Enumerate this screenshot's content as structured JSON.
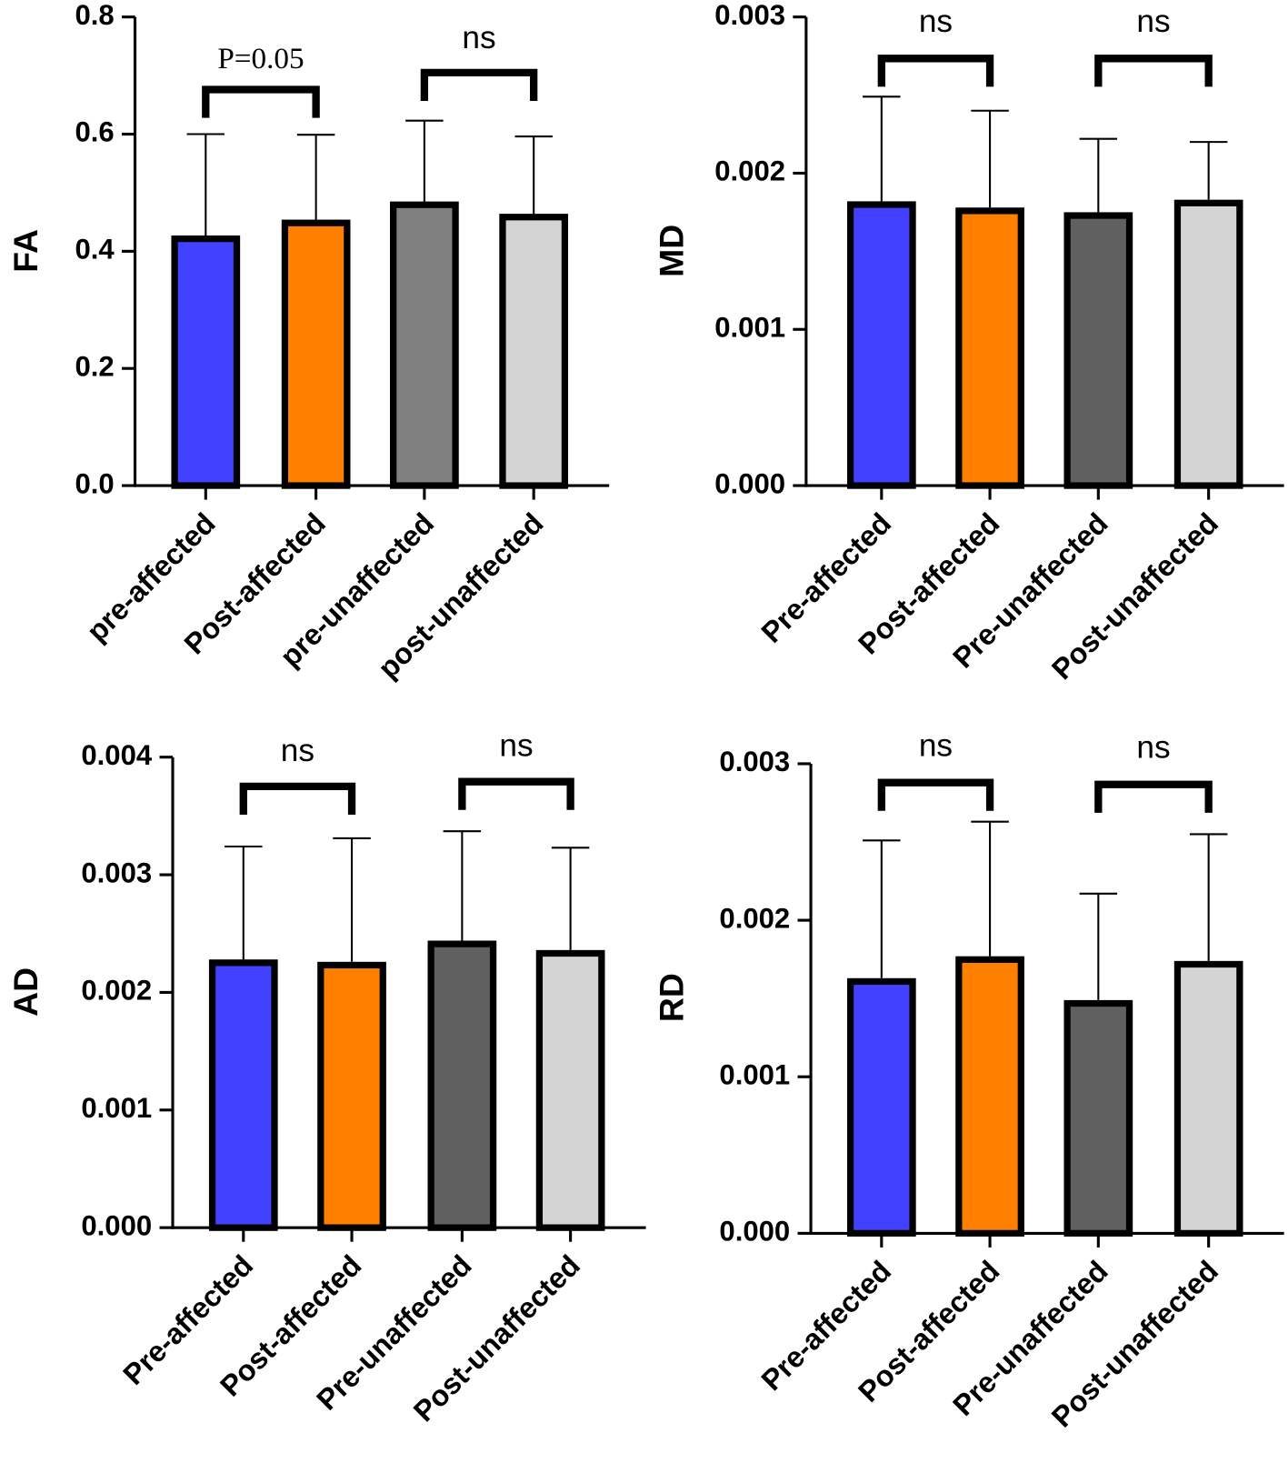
{
  "colors": {
    "blue": "#4141ff",
    "orange": "#ff8000",
    "gray": "#808080",
    "darkgray": "#606060",
    "lightgray": "#d4d4d4",
    "outline": "#000000"
  },
  "chart_data": [
    {
      "type": "bar",
      "ylabel": "FA",
      "ylim": [
        0,
        0.8
      ],
      "ticks": [
        "0.0",
        "0.2",
        "0.4",
        "0.6",
        "0.8"
      ],
      "tick_values": [
        0,
        0.2,
        0.4,
        0.6,
        0.8
      ],
      "categories": [
        "pre-affected",
        "Post-affected",
        "pre-unaffected",
        "post-unaffected"
      ],
      "values": [
        0.427,
        0.454,
        0.485,
        0.464
      ],
      "error_upper": [
        0.6,
        0.599,
        0.623,
        0.596
      ],
      "bar_colors": [
        "#4141ff",
        "#ff8000",
        "#808080",
        "#d4d4d4"
      ],
      "comparisons": [
        {
          "pair": [
            0,
            1
          ],
          "label": "P=0.05"
        },
        {
          "pair": [
            2,
            3
          ],
          "label": "ns"
        }
      ]
    },
    {
      "type": "bar",
      "ylabel": "MD",
      "ylim": [
        0,
        0.003
      ],
      "ticks": [
        "0.000",
        "0.001",
        "0.002",
        "0.003"
      ],
      "tick_values": [
        0,
        0.001,
        0.002,
        0.003
      ],
      "categories": [
        "Pre-affected",
        "Post-affected",
        "Pre-unaffected",
        "Post-unaffected"
      ],
      "values": [
        0.00182,
        0.00178,
        0.00175,
        0.00183
      ],
      "error_upper": [
        0.00249,
        0.0024,
        0.00222,
        0.0022
      ],
      "bar_colors": [
        "#4141ff",
        "#ff8000",
        "#606060",
        "#d4d4d4"
      ],
      "comparisons": [
        {
          "pair": [
            0,
            1
          ],
          "label": "ns"
        },
        {
          "pair": [
            2,
            3
          ],
          "label": "ns"
        }
      ]
    },
    {
      "type": "bar",
      "ylabel": "AD",
      "ylim": [
        0,
        0.004
      ],
      "ticks": [
        "0.000",
        "0.001",
        "0.002",
        "0.003",
        "0.004"
      ],
      "tick_values": [
        0,
        0.001,
        0.002,
        0.003,
        0.004
      ],
      "categories": [
        "Pre-affected",
        "Post-affected",
        "Pre-unaffected",
        "Post-unaffected"
      ],
      "values": [
        0.00228,
        0.00226,
        0.00244,
        0.00236
      ],
      "error_upper": [
        0.00324,
        0.00331,
        0.00337,
        0.00323
      ],
      "bar_colors": [
        "#4141ff",
        "#ff8000",
        "#606060",
        "#d4d4d4"
      ],
      "comparisons": [
        {
          "pair": [
            0,
            1
          ],
          "label": "ns"
        },
        {
          "pair": [
            2,
            3
          ],
          "label": "ns"
        }
      ]
    },
    {
      "type": "bar",
      "ylabel": "RD",
      "ylim": [
        0,
        0.003
      ],
      "ticks": [
        "0.000",
        "0.001",
        "0.002",
        "0.003"
      ],
      "tick_values": [
        0,
        0.001,
        0.002,
        0.003
      ],
      "categories": [
        "Pre-affected",
        "Post-affected",
        "Pre-unaffected",
        "Post-unaffected"
      ],
      "values": [
        0.00163,
        0.00177,
        0.00149,
        0.00174
      ],
      "error_upper": [
        0.00251,
        0.00263,
        0.00217,
        0.00255
      ],
      "bar_colors": [
        "#4141ff",
        "#ff8000",
        "#606060",
        "#d4d4d4"
      ],
      "comparisons": [
        {
          "pair": [
            0,
            1
          ],
          "label": "ns"
        },
        {
          "pair": [
            2,
            3
          ],
          "label": "ns"
        }
      ]
    }
  ]
}
